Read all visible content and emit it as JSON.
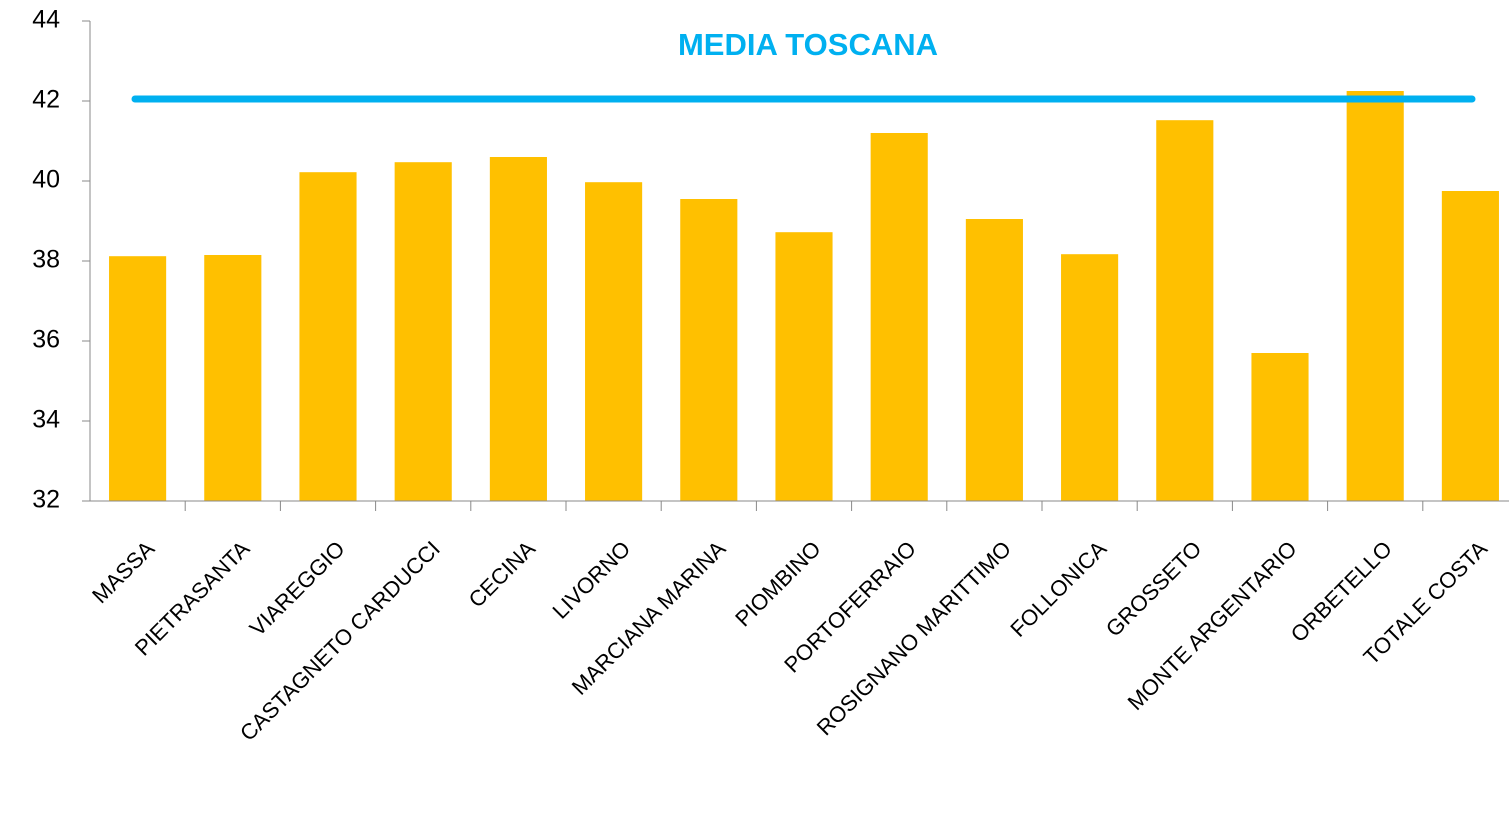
{
  "chart_data": {
    "type": "bar",
    "categories": [
      "MASSA",
      "PIETRASANTA",
      "VIAREGGIO",
      "CASTAGNETO CARDUCCI",
      "CECINA",
      "LIVORNO",
      "MARCIANA MARINA",
      "PIOMBINO",
      "PORTOFERRAIO",
      "ROSIGNANO MARITTIMO",
      "FOLLONICA",
      "GROSSETO",
      "MONTE ARGENTARIO",
      "ORBETELLO",
      "TOTALE COSTA"
    ],
    "values": [
      38.12,
      38.15,
      40.22,
      40.47,
      40.6,
      39.97,
      39.55,
      38.72,
      41.2,
      39.05,
      38.17,
      41.52,
      35.7,
      42.25,
      39.75
    ],
    "color": "#ffc000",
    "ylim": [
      32,
      44
    ],
    "yticks": [
      32,
      34,
      36,
      38,
      40,
      42,
      44
    ],
    "reference": {
      "label": "MEDIA TOSCANA",
      "value": 42.05,
      "color": "#00b0f0"
    }
  }
}
